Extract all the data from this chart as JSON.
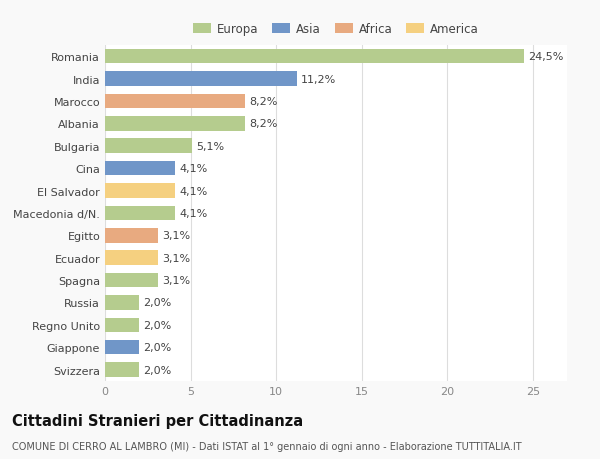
{
  "categories": [
    "Svizzera",
    "Giappone",
    "Regno Unito",
    "Russia",
    "Spagna",
    "Ecuador",
    "Egitto",
    "Macedonia d/N.",
    "El Salvador",
    "Cina",
    "Bulgaria",
    "Albania",
    "Marocco",
    "India",
    "Romania"
  ],
  "values": [
    2.0,
    2.0,
    2.0,
    2.0,
    3.1,
    3.1,
    3.1,
    4.1,
    4.1,
    4.1,
    5.1,
    8.2,
    8.2,
    11.2,
    24.5
  ],
  "colors": [
    "#b5cc8e",
    "#7096c8",
    "#b5cc8e",
    "#b5cc8e",
    "#b5cc8e",
    "#f5d080",
    "#e8aa80",
    "#b5cc8e",
    "#f5d080",
    "#7096c8",
    "#b5cc8e",
    "#b5cc8e",
    "#e8aa80",
    "#7096c8",
    "#b5cc8e"
  ],
  "labels": [
    "2,0%",
    "2,0%",
    "2,0%",
    "2,0%",
    "3,1%",
    "3,1%",
    "3,1%",
    "4,1%",
    "4,1%",
    "4,1%",
    "5,1%",
    "8,2%",
    "8,2%",
    "11,2%",
    "24,5%"
  ],
  "legend_labels": [
    "Europa",
    "Asia",
    "Africa",
    "America"
  ],
  "legend_colors": [
    "#b5cc8e",
    "#7096c8",
    "#e8aa80",
    "#f5d080"
  ],
  "title": "Cittadini Stranieri per Cittadinanza",
  "subtitle": "COMUNE DI CERRO AL LAMBRO (MI) - Dati ISTAT al 1° gennaio di ogni anno - Elaborazione TUTTITALIA.IT",
  "xlim": [
    0,
    27
  ],
  "xticks": [
    0,
    5,
    10,
    15,
    20,
    25
  ],
  "background_color": "#f9f9f9",
  "bar_background": "#ffffff",
  "grid_color": "#dddddd",
  "label_fontsize": 8.0,
  "title_fontsize": 10.5,
  "subtitle_fontsize": 7.0
}
